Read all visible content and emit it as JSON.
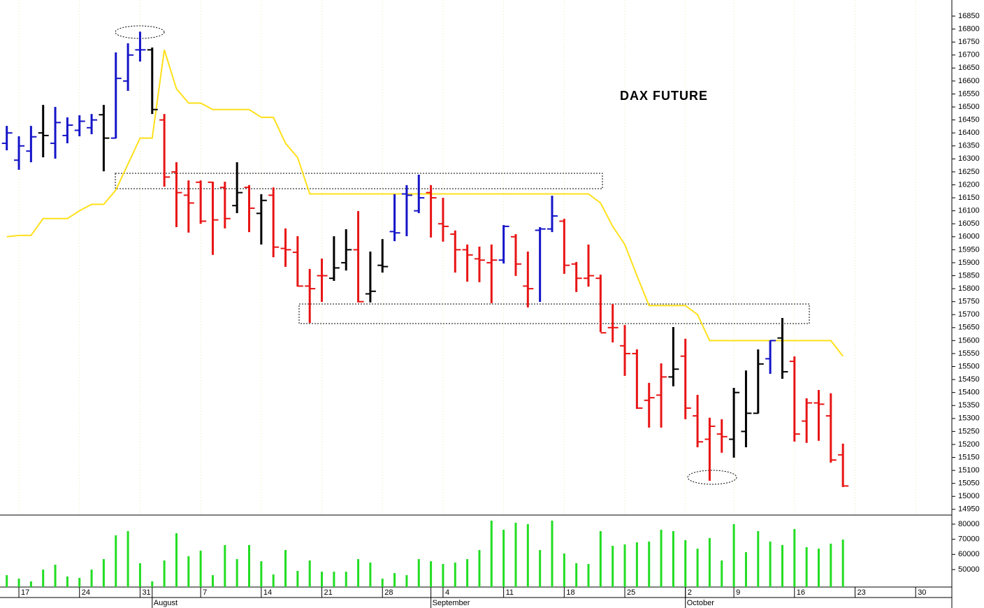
{
  "chart_data": [
    {
      "type": "ohlc",
      "title": "DAX FUTURE",
      "categories": [
        null,
        "17",
        null,
        null,
        null,
        null,
        "24",
        null,
        null,
        null,
        null,
        "31",
        null,
        null,
        null,
        null,
        "7",
        null,
        null,
        null,
        null,
        "14",
        null,
        null,
        null,
        null,
        "21",
        null,
        null,
        null,
        null,
        "28",
        null,
        null,
        null,
        null,
        "4",
        null,
        null,
        null,
        null,
        "11",
        null,
        null,
        null,
        null,
        "18",
        null,
        null,
        null,
        null,
        "25",
        null,
        null,
        null,
        null,
        "2",
        null,
        null,
        null,
        "9",
        null,
        null,
        null,
        null,
        "16",
        null,
        null,
        null,
        null,
        "23",
        null,
        null,
        null,
        null,
        "30",
        null
      ],
      "months": [
        "August",
        "September",
        "October"
      ],
      "open": [
        16360,
        16295,
        16330,
        16400,
        16360,
        16390,
        16410,
        16420,
        16470,
        16380,
        16600,
        16720,
        16720,
        16450,
        16250,
        16160,
        16210,
        16210,
        16190,
        16120,
        16190,
        16090,
        16160,
        15955,
        15940,
        15810,
        15850,
        15840,
        15900,
        15950,
        15780,
        15890,
        16020,
        16165,
        16100,
        16170,
        16050,
        16010,
        15950,
        15915,
        15900,
        15910,
        16000,
        15810,
        16025,
        16030,
        16060,
        15895,
        15840,
        15840,
        15650,
        15580,
        15550,
        15370,
        15390,
        15460,
        15540,
        15310,
        15220,
        15240,
        15220,
        15250,
        15320,
        15530,
        15610,
        15520,
        15290,
        15360,
        15310,
        15160,
        null,
        null,
        null,
        null,
        null,
        null,
        null
      ],
      "high": [
        16427,
        16387,
        16427,
        16508,
        16500,
        16460,
        16468,
        16473,
        16508,
        16710,
        16745,
        16790,
        16729,
        16473,
        16287,
        16217,
        16217,
        16212,
        16212,
        16287,
        16199,
        16164,
        16190,
        16032,
        16002,
        15876,
        15916,
        16002,
        16029,
        16099,
        15943,
        15991,
        16164,
        16199,
        16239,
        16199,
        16150,
        16024,
        15970,
        15962,
        15970,
        16045,
        16010,
        15943,
        16037,
        16158,
        16069,
        15903,
        15970,
        15854,
        15741,
        15660,
        15566,
        15437,
        15512,
        15652,
        15607,
        15391,
        15303,
        15297,
        15418,
        15485,
        15566,
        15601,
        15687,
        15539,
        15378,
        15410,
        15397,
        15203,
        null,
        null,
        null,
        null,
        null,
        null,
        null
      ],
      "low": [
        16333,
        16258,
        16287,
        16306,
        16301,
        16360,
        16387,
        16395,
        16252,
        16379,
        16562,
        16675,
        16473,
        16193,
        16037,
        16016,
        16050,
        15930,
        16032,
        16091,
        16018,
        15970,
        15921,
        15884,
        15808,
        15668,
        15749,
        15830,
        15870,
        15747,
        15747,
        15862,
        15983,
        16002,
        16091,
        15997,
        15981,
        15862,
        15827,
        15825,
        15744,
        15897,
        15849,
        15728,
        15749,
        16018,
        15857,
        15787,
        15808,
        15633,
        15593,
        15464,
        15337,
        15265,
        15265,
        15424,
        15297,
        15189,
        15060,
        15168,
        15149,
        15189,
        15319,
        15472,
        15453,
        15211,
        15206,
        15214,
        15130,
        15036,
        null,
        null,
        null,
        null,
        null,
        null,
        null
      ],
      "close": [
        16400,
        16350,
        16385,
        16390,
        16440,
        16430,
        16445,
        16450,
        16380,
        16610,
        16700,
        16720,
        16490,
        16230,
        16170,
        16130,
        16060,
        16065,
        16070,
        16170,
        16110,
        16140,
        15960,
        15950,
        15810,
        15800,
        15850,
        15880,
        15950,
        15750,
        15790,
        15885,
        16015,
        16160,
        16150,
        16150,
        16040,
        15950,
        15930,
        15910,
        15910,
        16040,
        15895,
        15800,
        16030,
        16080,
        15890,
        15840,
        15850,
        15630,
        15650,
        15550,
        15340,
        15380,
        15460,
        15490,
        15340,
        15210,
        15270,
        15230,
        15400,
        15320,
        15510,
        15600,
        15480,
        15240,
        15360,
        15355,
        15140,
        15040,
        null,
        null,
        null,
        null,
        null,
        null,
        null
      ],
      "colors": [
        "#1414c8",
        "#1414c8",
        "#1414c8",
        "#000000",
        "#1414c8",
        "#1414c8",
        "#1414c8",
        "#1414c8",
        "#000000",
        "#1414c8",
        "#1414c8",
        "#1414c8",
        "#000000",
        "#e81414",
        "#e81414",
        "#e81414",
        "#e81414",
        "#e81414",
        "#e81414",
        "#000000",
        "#e81414",
        "#000000",
        "#e81414",
        "#e81414",
        "#e81414",
        "#e81414",
        "#e81414",
        "#000000",
        "#000000",
        "#e81414",
        "#000000",
        "#000000",
        "#1414c8",
        "#1414c8",
        "#1414c8",
        "#e81414",
        "#e81414",
        "#e81414",
        "#e81414",
        "#e81414",
        "#e81414",
        "#1414c8",
        "#e81414",
        "#e81414",
        "#1414c8",
        "#1414c8",
        "#e81414",
        "#e81414",
        "#e81414",
        "#e81414",
        "#e81414",
        "#e81414",
        "#e81414",
        "#e81414",
        "#e81414",
        "#000000",
        "#e81414",
        "#e81414",
        "#e81414",
        "#e81414",
        "#000000",
        "#000000",
        "#000000",
        "#1414c8",
        "#000000",
        "#e81414",
        "#e81414",
        "#e81414",
        "#e81414",
        "#e81414",
        null,
        null,
        null,
        null,
        null,
        null,
        null
      ],
      "line": {
        "color": "#ffe01a",
        "values": [
          16000,
          16005,
          16005,
          16070,
          16070,
          16070,
          16100,
          16125,
          16125,
          16180,
          16280,
          16380,
          16380,
          16720,
          16570,
          16515,
          16515,
          16490,
          16490,
          16490,
          16490,
          16460,
          16460,
          16360,
          16305,
          16165,
          16165,
          16165,
          16165,
          16165,
          16165,
          16165,
          16165,
          16165,
          16165,
          16165,
          16165,
          16165,
          16165,
          16165,
          16165,
          16165,
          16165,
          16165,
          16165,
          16165,
          16165,
          16165,
          16165,
          16130,
          16040,
          15970,
          15850,
          15735,
          15735,
          15735,
          15735,
          15700,
          15600,
          15600,
          15600,
          15600,
          15600,
          15600,
          15600,
          15600,
          15600,
          15600,
          15600,
          15540,
          null,
          null,
          null,
          null,
          null,
          null,
          null
        ]
      },
      "ylim": [
        14928,
        16912
      ],
      "yticks": [
        14950,
        15000,
        15050,
        15100,
        15150,
        15200,
        15250,
        15300,
        15350,
        15400,
        15450,
        15500,
        15550,
        15600,
        15650,
        15700,
        15750,
        15800,
        15850,
        15900,
        15950,
        16000,
        16050,
        16100,
        16150,
        16200,
        16250,
        16300,
        16350,
        16400,
        16450,
        16500,
        16550,
        16600,
        16650,
        16700,
        16750,
        16800,
        16850
      ],
      "grid": true
    },
    {
      "type": "bar",
      "color": "#22dd22",
      "values": [
        46300,
        44000,
        42200,
        50000,
        53200,
        45400,
        44500,
        50000,
        56900,
        72600,
        75400,
        54200,
        42200,
        56000,
        74000,
        58800,
        62500,
        46300,
        66200,
        56900,
        66200,
        55500,
        46800,
        62900,
        49100,
        56000,
        48600,
        48600,
        48600,
        56900,
        54600,
        44000,
        47700,
        46300,
        56900,
        55500,
        53700,
        54600,
        56900,
        62900,
        82300,
        76300,
        80900,
        80000,
        62900,
        82300,
        60600,
        54200,
        53700,
        75400,
        65700,
        66600,
        68000,
        68500,
        76300,
        75400,
        69400,
        63800,
        70800,
        56000,
        80000,
        61500,
        75400,
        68500,
        66200,
        76800,
        64800,
        63800,
        67100,
        69800,
        null,
        null,
        null,
        null,
        null,
        null,
        null
      ],
      "ylim": [
        38460,
        86000
      ],
      "yticks": [
        50000,
        60000,
        70000,
        80000
      ]
    }
  ]
}
